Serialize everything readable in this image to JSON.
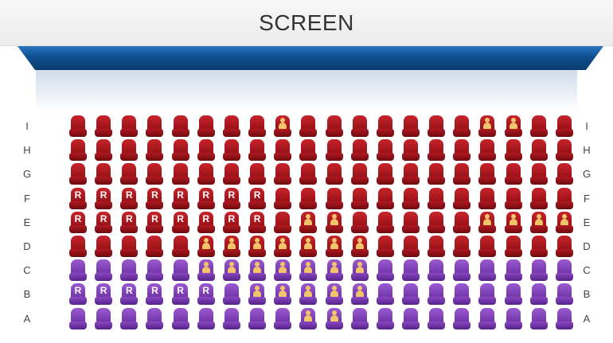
{
  "screen": {
    "title": "SCREEN"
  },
  "rows": [
    {
      "label": "I",
      "color": "red",
      "seats": [
        "",
        "",
        "",
        "",
        "",
        "",
        "",
        "",
        "o",
        "",
        "",
        "",
        "",
        "",
        "",
        "",
        "o",
        "o",
        "",
        ""
      ]
    },
    {
      "label": "H",
      "color": "red",
      "seats": [
        "",
        "",
        "",
        "",
        "",
        "",
        "",
        "",
        "",
        "",
        "",
        "",
        "",
        "",
        "",
        "",
        "",
        "",
        "",
        ""
      ]
    },
    {
      "label": "G",
      "color": "red",
      "seats": [
        "",
        "",
        "",
        "",
        "",
        "",
        "",
        "",
        "",
        "",
        "",
        "",
        "",
        "",
        "",
        "",
        "",
        "",
        "",
        ""
      ]
    },
    {
      "label": "F",
      "color": "red",
      "seats": [
        "r",
        "r",
        "r",
        "r",
        "r",
        "r",
        "r",
        "r",
        "",
        "",
        "",
        "",
        "",
        "",
        "",
        "",
        "",
        "",
        "",
        ""
      ]
    },
    {
      "label": "E",
      "color": "red",
      "seats": [
        "r",
        "r",
        "r",
        "r",
        "r",
        "r",
        "r",
        "r",
        "",
        "o",
        "o",
        "",
        "",
        "",
        "",
        "",
        "o",
        "o",
        "o",
        "o"
      ]
    },
    {
      "label": "D",
      "color": "red",
      "seats": [
        "",
        "",
        "",
        "",
        "",
        "o",
        "o",
        "o",
        "o",
        "o",
        "o",
        "o",
        "",
        "",
        "",
        "",
        "",
        "",
        "",
        ""
      ]
    },
    {
      "label": "C",
      "color": "purple",
      "seats": [
        "",
        "",
        "",
        "",
        "",
        "o",
        "o",
        "o",
        "o",
        "o",
        "o",
        "o",
        "",
        "",
        "",
        "",
        "",
        "",
        "",
        ""
      ]
    },
    {
      "label": "B",
      "color": "purple",
      "seats": [
        "r",
        "r",
        "r",
        "r",
        "r",
        "r",
        "",
        "o",
        "o",
        "o",
        "o",
        "o",
        "",
        "",
        "",
        "",
        "",
        "",
        "",
        ""
      ]
    },
    {
      "label": "A",
      "color": "purple",
      "seats": [
        "",
        "",
        "",
        "",
        "",
        "",
        "",
        "",
        "",
        "o",
        "o",
        "",
        "",
        "",
        "",
        "",
        "",
        "",
        "",
        ""
      ]
    }
  ],
  "marks": {
    "reserved_letter": "R"
  },
  "colors": {
    "red_seat": "#b01a20",
    "purple_seat": "#7a3ab5",
    "occupied_icon": "#f3c56a",
    "screen_bar": "#0e4f8f"
  },
  "icons": {
    "occupied": "person-icon",
    "reserved": "letter-r"
  }
}
